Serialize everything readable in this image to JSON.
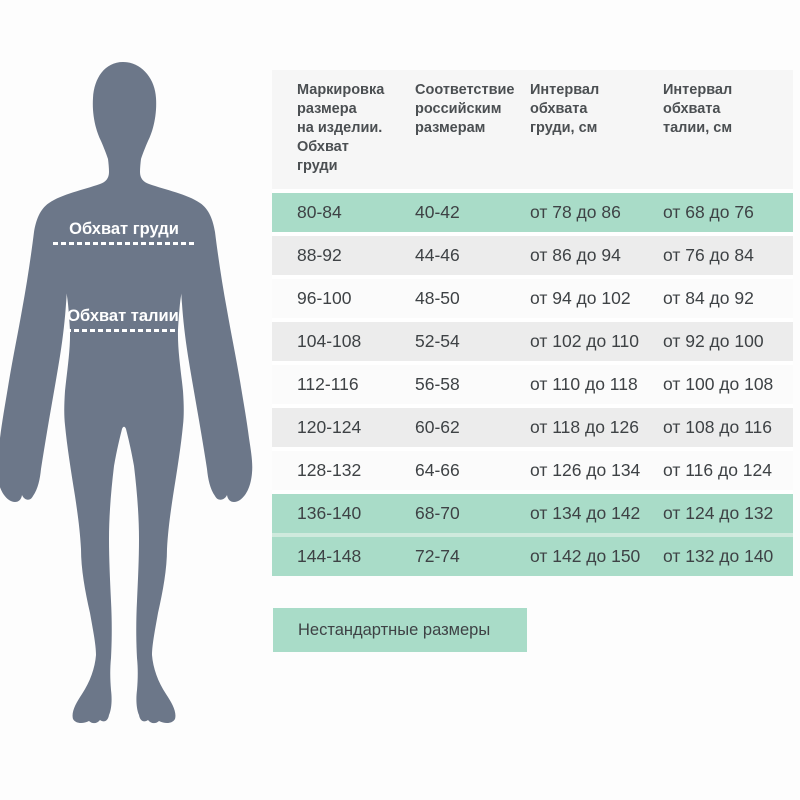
{
  "figure": {
    "chest_label": "Обхват груди",
    "waist_label": "Обхват талии"
  },
  "table": {
    "headers": [
      "Маркировка\nразмера\nна изделии.\nОбхват\nгруди",
      "Соответствие\nроссийским\nразмерам",
      "Интервал\nобхвата\nгруди, см",
      "Интервал\nобхвата\nталии, см"
    ],
    "rows": [
      {
        "cells": [
          "80-84",
          "40-42",
          "от 78 до 86",
          "от 68 до 76"
        ],
        "highlight": true
      },
      {
        "cells": [
          "88-92",
          "44-46",
          "от 86 до 94",
          "от 76 до 84"
        ],
        "highlight": false
      },
      {
        "cells": [
          "96-100",
          "48-50",
          "от 94 до 102",
          "от 84 до 92"
        ],
        "highlight": false
      },
      {
        "cells": [
          "104-108",
          "52-54",
          "от 102 до 110",
          "от 92 до 100"
        ],
        "highlight": false
      },
      {
        "cells": [
          "112-116",
          "56-58",
          "от 110 до 118",
          "от 100 до 108"
        ],
        "highlight": false
      },
      {
        "cells": [
          "120-124",
          "60-62",
          "от 118 до 126",
          "от 108 до 116"
        ],
        "highlight": false
      },
      {
        "cells": [
          "128-132",
          "64-66",
          "от 126 до 134",
          "от 116 до 124"
        ],
        "highlight": false
      },
      {
        "cells": [
          "136-140",
          "68-70",
          "от 134 до 142",
          "от 124 до 132"
        ],
        "highlight": true
      },
      {
        "cells": [
          "144-148",
          "72-74",
          "от 142 до 150",
          "от 132 до 140"
        ],
        "highlight": true
      }
    ]
  },
  "footer": {
    "nonstandard_label": "Нестандартные размеры"
  },
  "colors": {
    "highlight_green": "#a9dcc8",
    "row_stripe_gray": "#ececec",
    "header_gray": "#f6f6f6",
    "silhouette_slate": "#6c7789",
    "text_dark": "#3e4245",
    "label_white": "#ffffff"
  }
}
